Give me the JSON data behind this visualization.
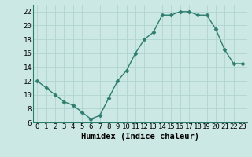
{
  "x": [
    0,
    1,
    2,
    3,
    4,
    5,
    6,
    7,
    8,
    9,
    10,
    11,
    12,
    13,
    14,
    15,
    16,
    17,
    18,
    19,
    20,
    21,
    22,
    23
  ],
  "y": [
    12,
    11,
    10,
    9,
    8.5,
    7.5,
    6.5,
    7,
    9.5,
    12,
    13.5,
    16,
    18,
    19,
    21.5,
    21.5,
    22,
    22,
    21.5,
    21.5,
    19.5,
    16.5,
    14.5,
    14.5
  ],
  "line_color": "#2e7d6e",
  "marker_color": "#2e7d6e",
  "bg_color": "#cce8e4",
  "grid_color": "#b0d4cf",
  "xlabel": "Humidex (Indice chaleur)",
  "xlim": [
    -0.5,
    23.5
  ],
  "ylim": [
    6,
    23
  ],
  "yticks": [
    6,
    8,
    10,
    12,
    14,
    16,
    18,
    20,
    22
  ],
  "xticks": [
    0,
    1,
    2,
    3,
    4,
    5,
    6,
    7,
    8,
    9,
    10,
    11,
    12,
    13,
    14,
    15,
    16,
    17,
    18,
    19,
    20,
    21,
    22,
    23
  ],
  "xlabel_fontsize": 7.5,
  "tick_fontsize": 6.5,
  "marker_size": 2.5,
  "line_width": 1.0
}
